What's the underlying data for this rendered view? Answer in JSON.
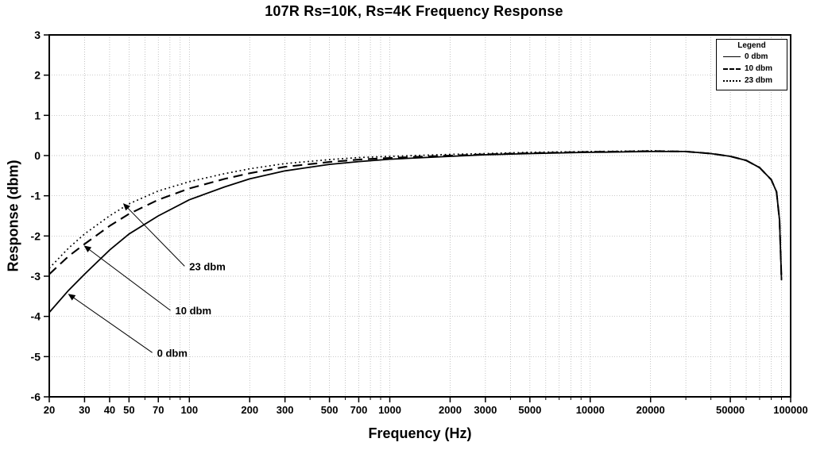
{
  "title": "107R  Rs=10K, Rs=4K Frequency Response",
  "chart_data": {
    "type": "line",
    "title": "107R  Rs=10K, Rs=4K Frequency Response",
    "xlabel": "Frequency (Hz)",
    "ylabel": "Response (dbm)",
    "x_scale": "log",
    "xlim": [
      20,
      100000
    ],
    "ylim": [
      -6,
      3
    ],
    "grid": true,
    "y_ticks": [
      3,
      2,
      1,
      0,
      -1,
      -2,
      -3,
      -4,
      -5,
      -6
    ],
    "x_ticks": [
      {
        "value": 20,
        "label": "20"
      },
      {
        "value": 30,
        "label": "30"
      },
      {
        "value": 40,
        "label": "40"
      },
      {
        "value": 50,
        "label": "50"
      },
      {
        "value": 70,
        "label": "70"
      },
      {
        "value": 100,
        "label": "100"
      },
      {
        "value": 200,
        "label": "200"
      },
      {
        "value": 300,
        "label": "300"
      },
      {
        "value": 500,
        "label": "500"
      },
      {
        "value": 700,
        "label": "700"
      },
      {
        "value": 1000,
        "label": "1000"
      },
      {
        "value": 2000,
        "label": "2000"
      },
      {
        "value": 3000,
        "label": "3000"
      },
      {
        "value": 5000,
        "label": "5000"
      },
      {
        "value": 10000,
        "label": "10000"
      },
      {
        "value": 20000,
        "label": "20000"
      },
      {
        "value": 50000,
        "label": "50000"
      },
      {
        "value": 100000,
        "label": "100000"
      }
    ],
    "x": [
      20,
      25,
      30,
      40,
      50,
      70,
      100,
      150,
      200,
      300,
      500,
      700,
      1000,
      2000,
      3000,
      5000,
      10000,
      15000,
      20000,
      30000,
      40000,
      50000,
      60000,
      70000,
      80000,
      85000,
      88000,
      90000
    ],
    "series": [
      {
        "name": "0 dbm",
        "style": "solid",
        "values": [
          -3.9,
          -3.35,
          -2.95,
          -2.35,
          -1.95,
          -1.5,
          -1.1,
          -0.78,
          -0.58,
          -0.38,
          -0.22,
          -0.15,
          -0.09,
          -0.02,
          0.02,
          0.05,
          0.08,
          0.09,
          0.1,
          0.1,
          0.05,
          -0.02,
          -0.12,
          -0.3,
          -0.6,
          -0.9,
          -1.6,
          -3.1
        ]
      },
      {
        "name": "10 dbm",
        "style": "dashed",
        "values": [
          -2.95,
          -2.5,
          -2.2,
          -1.75,
          -1.45,
          -1.1,
          -0.82,
          -0.58,
          -0.44,
          -0.28,
          -0.16,
          -0.1,
          -0.06,
          0.0,
          0.03,
          0.06,
          0.09,
          0.1,
          0.11,
          0.1,
          0.05,
          -0.02,
          -0.12,
          -0.3,
          -0.6,
          -0.9,
          -1.6,
          -3.1
        ]
      },
      {
        "name": "23 dbm",
        "style": "dotted",
        "values": [
          -2.8,
          -2.3,
          -1.95,
          -1.5,
          -1.2,
          -0.88,
          -0.65,
          -0.45,
          -0.33,
          -0.2,
          -0.1,
          -0.05,
          -0.02,
          0.03,
          0.05,
          0.08,
          0.1,
          0.11,
          0.12,
          0.1,
          0.05,
          -0.02,
          -0.12,
          -0.3,
          -0.6,
          -0.9,
          -1.6,
          -3.1
        ]
      }
    ],
    "legend": {
      "title": "Legend",
      "position": "top-right",
      "entries": [
        {
          "label": "0 dbm",
          "style": "solid"
        },
        {
          "label": "10 dbm",
          "style": "dashed"
        },
        {
          "label": "23 dbm",
          "style": "dotted"
        }
      ]
    },
    "annotations": [
      {
        "label": "23 dbm",
        "text_at": [
          100,
          -2.85
        ],
        "arrow_to": [
          47,
          -1.2
        ]
      },
      {
        "label": "10 dbm",
        "text_at": [
          85,
          -3.95
        ],
        "arrow_to": [
          30,
          -2.25
        ]
      },
      {
        "label": "0 dbm",
        "text_at": [
          69,
          -5.0
        ],
        "arrow_to": [
          25,
          -3.45
        ]
      }
    ],
    "colors": {
      "line": "#000000",
      "grid": "#aaaaaa",
      "background": "#ffffff"
    }
  }
}
